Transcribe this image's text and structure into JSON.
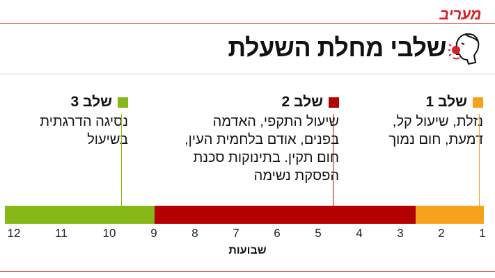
{
  "logo": "מעריב",
  "title": "שלבי מחלת השעלת",
  "icon": "coughing-person-icon",
  "stages": [
    {
      "label": "שלב 1",
      "color": "#f7a21b",
      "lines": [
        "נזלת, שיעול קל,",
        "דמעת, חום נמוך"
      ]
    },
    {
      "label": "שלב 2",
      "color": "#b40000",
      "lines": [
        "שיעול התקפי, האדמה",
        "בפנים, אודם בלחמית העין,",
        "חום תקין. בתינוקות סכנת",
        "הפסקת נשימה"
      ]
    },
    {
      "label": "שלב 3",
      "color": "#86b817",
      "lines": [
        "נסיגה הדרגתית",
        "בשיעול"
      ]
    }
  ],
  "timeline": {
    "weeks": [
      "1",
      "2",
      "3",
      "4",
      "5",
      "6",
      "7",
      "8",
      "9",
      "10",
      "11",
      "12"
    ],
    "axis_label": "שבועות",
    "segments": [
      {
        "stage": "שלב 1",
        "from_week": 0.9,
        "to_week": 2.5,
        "color": "#f7a21b"
      },
      {
        "stage": "שלב 2",
        "from_week": 2.5,
        "to_week": 8.6,
        "color": "#b40000"
      },
      {
        "stage": "שלב 3",
        "from_week": 8.6,
        "to_week": 12.1,
        "color": "#86b817"
      }
    ]
  }
}
